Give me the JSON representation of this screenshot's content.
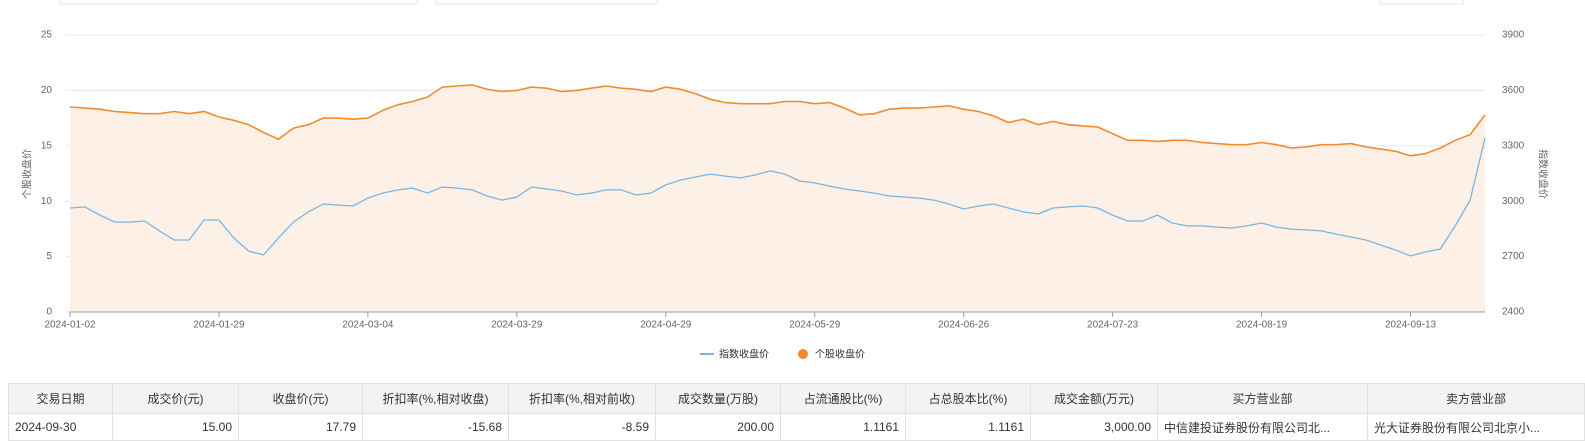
{
  "chart_data": {
    "type": "line",
    "y_label": "个股收盘价",
    "y2_label": "指数收盘价",
    "categories": [
      "2024-01-02",
      null,
      null,
      null,
      null,
      null,
      null,
      null,
      null,
      null,
      "2024-01-29",
      null,
      null,
      null,
      null,
      null,
      null,
      null,
      null,
      null,
      "2024-03-04",
      null,
      null,
      null,
      null,
      null,
      null,
      null,
      null,
      null,
      "2024-03-29",
      null,
      null,
      null,
      null,
      null,
      null,
      null,
      null,
      null,
      "2024-04-29",
      null,
      null,
      null,
      null,
      null,
      null,
      null,
      null,
      null,
      "2024-05-29",
      null,
      null,
      null,
      null,
      null,
      null,
      null,
      null,
      null,
      "2024-06-26",
      null,
      null,
      null,
      null,
      null,
      null,
      null,
      null,
      null,
      "2024-07-23",
      null,
      null,
      null,
      null,
      null,
      null,
      null,
      null,
      null,
      "2024-08-19",
      null,
      null,
      null,
      null,
      null,
      null,
      null,
      null,
      null,
      "2024-09-13",
      null,
      null,
      null,
      null,
      null
    ],
    "series": [
      {
        "name": "指数收盘价",
        "color": "#7cb5e0",
        "axis": "y2",
        "values": [
          2963,
          2969,
          2925,
          2887,
          2887,
          2893,
          2839,
          2790,
          2790,
          2898,
          2898,
          2801,
          2730,
          2709,
          2801,
          2887,
          2942,
          2985,
          2979,
          2974,
          3017,
          3044,
          3061,
          3071,
          3044,
          3077,
          3071,
          3061,
          3028,
          3006,
          3023,
          3077,
          3066,
          3055,
          3034,
          3044,
          3061,
          3061,
          3034,
          3044,
          3088,
          3115,
          3131,
          3147,
          3136,
          3126,
          3142,
          3164,
          3147,
          3109,
          3099,
          3082,
          3066,
          3055,
          3044,
          3028,
          3023,
          3017,
          3006,
          2985,
          2958,
          2974,
          2985,
          2963,
          2942,
          2931,
          2963,
          2969,
          2974,
          2963,
          2925,
          2893,
          2893,
          2925,
          2882,
          2866,
          2866,
          2860,
          2855,
          2866,
          2882,
          2860,
          2849,
          2844,
          2839,
          2822,
          2806,
          2790,
          2763,
          2736,
          2703,
          2725,
          2741,
          2866,
          3006,
          3342
        ]
      },
      {
        "name": "个股收盘价",
        "color": "#f28b30",
        "area_color": "#fdf1e7",
        "values": [
          18.5,
          18.4,
          18.3,
          18.1,
          18.0,
          17.9,
          17.9,
          18.1,
          17.9,
          18.1,
          17.6,
          17.3,
          16.9,
          16.2,
          15.6,
          16.6,
          16.9,
          17.5,
          17.5,
          17.4,
          17.5,
          18.2,
          18.7,
          19.0,
          19.4,
          20.3,
          20.4,
          20.5,
          20.1,
          19.9,
          20.0,
          20.3,
          20.2,
          19.9,
          20.0,
          20.2,
          20.4,
          20.2,
          20.1,
          19.9,
          20.3,
          20.1,
          19.7,
          19.2,
          18.9,
          18.8,
          18.8,
          18.8,
          19.0,
          19.0,
          18.8,
          18.9,
          18.4,
          17.8,
          17.9,
          18.3,
          18.4,
          18.4,
          18.5,
          18.6,
          18.3,
          18.1,
          17.7,
          17.1,
          17.4,
          16.9,
          17.2,
          16.9,
          16.8,
          16.7,
          16.1,
          15.5,
          15.5,
          15.4,
          15.5,
          15.5,
          15.3,
          15.2,
          15.1,
          15.1,
          15.3,
          15.1,
          14.8,
          14.9,
          15.1,
          15.1,
          15.2,
          14.9,
          14.7,
          14.5,
          14.1,
          14.3,
          14.8,
          15.5,
          16.0,
          17.79
        ]
      }
    ],
    "ylim": [
      0,
      25
    ],
    "yticks": [
      0,
      5,
      10,
      15,
      20,
      25
    ],
    "y2lim": [
      2400,
      3900
    ],
    "y2ticks": [
      2400,
      2700,
      3000,
      3300,
      3600,
      3900
    ],
    "grid": true,
    "legend": "bottom"
  },
  "table": {
    "headers": [
      "交易日期",
      "成交价(元)",
      "收盘价(元)",
      "折扣率(%,相对收盘)",
      "折扣率(%,相对前收)",
      "成交数量(万股)",
      "占流通股比(%)",
      "占总股本比(%)",
      "成交金额(万元)",
      "买方营业部",
      "卖方营业部"
    ],
    "rows": [
      [
        "2024-09-30",
        "15.00",
        "17.79",
        "-15.68",
        "-8.59",
        "200.00",
        "1.1161",
        "1.1161",
        "3,000.00",
        "中信建投证券股份有限公司北...",
        "光大证券股份有限公司北京小..."
      ]
    ]
  }
}
